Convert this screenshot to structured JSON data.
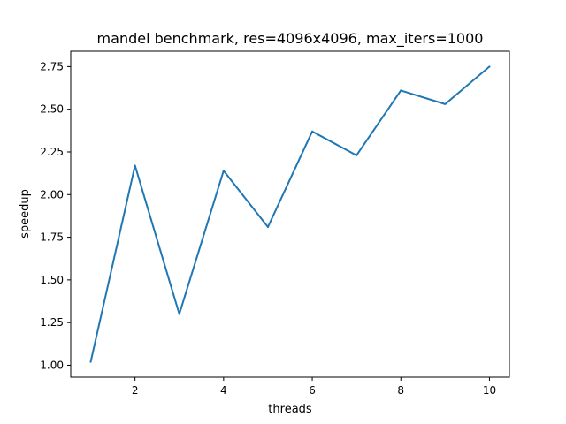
{
  "chart_data": {
    "type": "line",
    "title": "mandel benchmark, res=4096x4096, max_iters=1000",
    "xlabel": "threads",
    "ylabel": "speedup",
    "xlim": [
      0.55,
      10.45
    ],
    "ylim": [
      0.93,
      2.84
    ],
    "xticks": [
      2,
      4,
      6,
      8,
      10
    ],
    "xtick_labels": [
      "2",
      "4",
      "6",
      "8",
      "10"
    ],
    "yticks": [
      1.0,
      1.25,
      1.5,
      1.75,
      2.0,
      2.25,
      2.5,
      2.75
    ],
    "ytick_labels": [
      "1.00",
      "1.25",
      "1.50",
      "1.75",
      "2.00",
      "2.25",
      "2.50",
      "2.75"
    ],
    "grid": false,
    "series": [
      {
        "color": "#1f77b4",
        "x": [
          1,
          2,
          3,
          4,
          5,
          6,
          7,
          8,
          9,
          10
        ],
        "y": [
          1.02,
          2.17,
          1.3,
          2.14,
          1.81,
          2.37,
          2.23,
          2.61,
          2.53,
          2.75
        ]
      }
    ]
  }
}
